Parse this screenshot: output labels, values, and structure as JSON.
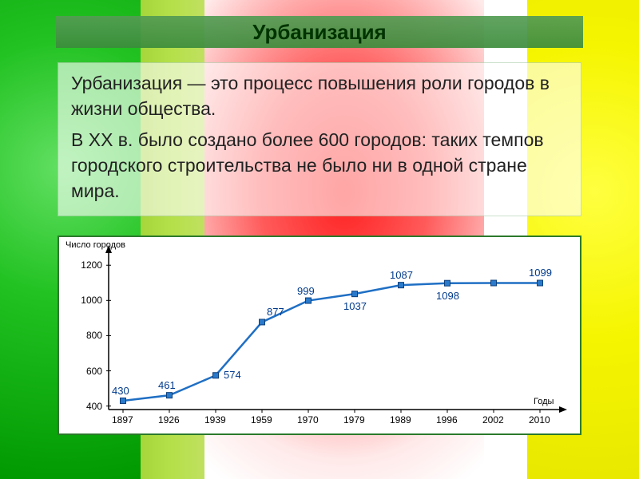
{
  "title": "Урбанизация",
  "body": {
    "p1": "Урбанизация — это процесс повышения роли городов в жизни общества.",
    "p2": "В XX в. было создано более 600 городов: таких темпов городского строительства не было ни в одной стране мира."
  },
  "chart": {
    "type": "line",
    "y_axis_title": "Число городов",
    "x_axis_title": "Годы",
    "line_color": "#1f6fc4",
    "marker_fill": "#2a7acc",
    "marker_stroke": "#0d3f7a",
    "marker_size": 7,
    "line_width": 2.5,
    "background": "#ffffff",
    "axis_color": "#000000",
    "label_color": "#003a8c",
    "y_ticks": [
      400,
      600,
      800,
      1000,
      1200
    ],
    "ylim": [
      380,
      1260
    ],
    "x_categories": [
      "1897",
      "1926",
      "1939",
      "1959",
      "1970",
      "1979",
      "1989",
      "1996",
      "2002",
      "2010"
    ],
    "values": [
      430,
      461,
      574,
      877,
      999,
      1037,
      1087,
      1098,
      1099,
      1099
    ],
    "point_labels": [
      "430",
      "461",
      "574",
      "877",
      "999",
      "1037",
      "1087",
      "1098",
      "",
      "1099"
    ],
    "label_pos": [
      "above",
      "above",
      "right",
      "above-right",
      "above",
      "below",
      "above",
      "below",
      "",
      "above"
    ]
  }
}
